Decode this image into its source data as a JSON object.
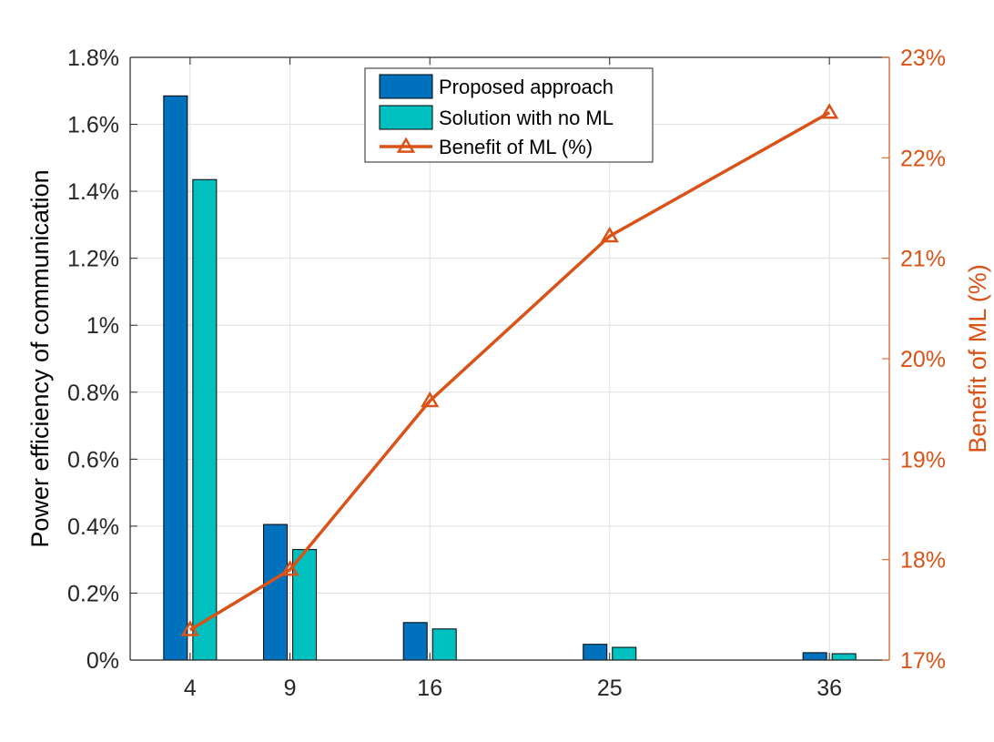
{
  "chart_data": {
    "type": "bar",
    "title": "",
    "xlabel": "",
    "x": [
      4,
      9,
      16,
      25,
      36
    ],
    "x_tick_labels": [
      "4",
      "9",
      "16",
      "25",
      "36"
    ],
    "xlim": [
      1,
      39
    ],
    "grid": true,
    "legend_position": "top-center",
    "left_axis": {
      "label": "Power efficiency of communication",
      "ylim": [
        0,
        1.8
      ],
      "unit": "%",
      "tick_values": [
        0,
        0.2,
        0.4,
        0.6,
        0.8,
        1.0,
        1.2,
        1.4,
        1.6,
        1.8
      ],
      "tick_labels": [
        "0%",
        "0.2%",
        "0.4%",
        "0.6%",
        "0.8%",
        "1%",
        "1.2%",
        "1.4%",
        "1.6%",
        "1.8%"
      ]
    },
    "right_axis": {
      "label": "Benefit of ML (%)",
      "ylim": [
        17,
        23
      ],
      "unit": "%",
      "tick_values": [
        17,
        18,
        19,
        20,
        21,
        22,
        23
      ],
      "tick_labels": [
        "17%",
        "18%",
        "19%",
        "20%",
        "21%",
        "22%",
        "23%"
      ],
      "color": "#D95319"
    },
    "series": [
      {
        "name": "Proposed approach",
        "type": "bar",
        "axis": "left",
        "color": "#0072BD",
        "values": [
          1.685,
          0.405,
          0.112,
          0.047,
          0.022
        ]
      },
      {
        "name": "Solution with no ML",
        "type": "bar",
        "axis": "left",
        "color": "#00BFBF",
        "values": [
          1.435,
          0.33,
          0.093,
          0.038,
          0.019
        ]
      },
      {
        "name": "Benefit of ML (%)",
        "type": "line",
        "marker": "triangle",
        "axis": "right",
        "color": "#D95319",
        "values": [
          17.3,
          17.9,
          19.58,
          21.22,
          22.45
        ]
      }
    ]
  }
}
